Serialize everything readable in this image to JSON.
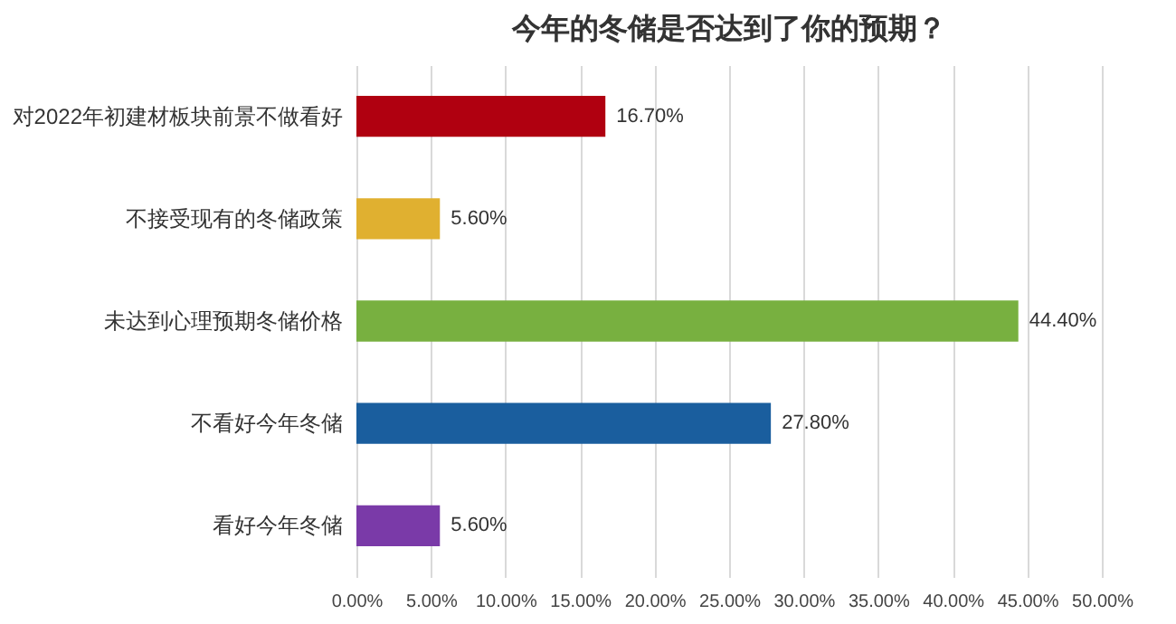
{
  "chart_data": {
    "type": "bar",
    "orientation": "horizontal",
    "title": "今年的冬储是否达到了你的预期？",
    "categories": [
      "对2022年初建材板块前景不做看好",
      "不接受现有的冬储政策",
      "未达到心理预期冬储价格",
      "不看好今年冬储",
      "看好今年冬储"
    ],
    "values": [
      16.7,
      5.6,
      44.4,
      27.8,
      5.6
    ],
    "colors": [
      "#b00010",
      "#e0b030",
      "#78b040",
      "#1a5e9e",
      "#7a3aa8"
    ],
    "value_labels": [
      "16.70%",
      "5.60%",
      "44.40%",
      "27.80%",
      "5.60%"
    ],
    "xlim": [
      0,
      50
    ],
    "xticks": [
      {
        "value": 0,
        "label": "0.00%"
      },
      {
        "value": 5,
        "label": "5.00%"
      },
      {
        "value": 10,
        "label": "10.00%"
      },
      {
        "value": 15,
        "label": "15.00%"
      },
      {
        "value": 20,
        "label": "20.00%"
      },
      {
        "value": 25,
        "label": "25.00%"
      },
      {
        "value": 30,
        "label": "30.00%"
      },
      {
        "value": 35,
        "label": "35.00%"
      },
      {
        "value": 40,
        "label": "40.00%"
      },
      {
        "value": 45,
        "label": "45.00%"
      },
      {
        "value": 50,
        "label": "50.00%"
      }
    ],
    "grid": "x",
    "legend": false
  }
}
